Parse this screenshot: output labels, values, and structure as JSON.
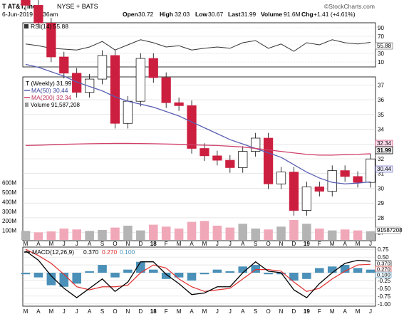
{
  "header": {
    "symbol_line": "T AT&T, Inc.",
    "exchange": "NYSE + BATS",
    "datetime": "6-Jun-2019 10:36am",
    "open_label": "Open",
    "open": "30.72",
    "high_label": "High",
    "high": "32.03",
    "low_label": "Low",
    "low": "30.67",
    "last_label": "Last",
    "last": "31.99",
    "volume_label": "Volume",
    "volume": "91.6M",
    "chg_label": "Chg",
    "chg": "+1.41 (+4.61%)",
    "brand": "©StockCharts.com"
  },
  "rsi_panel": {
    "label": "RSI(14) 55.88",
    "ticks": [
      "90",
      "70",
      "50",
      "30",
      "10"
    ],
    "value_box": "55.88"
  },
  "price_panel": {
    "legend_title": "T (Weekly) 31.99",
    "ma50_label": "MA(50) 30.44",
    "ma200_label": "MA(200) 32.34",
    "volume_label": "Volume 91,587,208",
    "price_ticks": [
      "37",
      "36",
      "35",
      "34",
      "33",
      "32",
      "31",
      "30",
      "29",
      "28",
      "27"
    ],
    "box_ma200": "32.34",
    "box_last": "31.99",
    "box_ma50": "30.44",
    "volume_ticks": [
      "600M",
      "500M",
      "400M",
      "300M",
      "200M",
      "100M"
    ],
    "volume_box": "91587208"
  },
  "macd_panel": {
    "label_prefix": "MACD(12,26,9)",
    "macd_value": "0.370",
    "signal_value": "0.270",
    "hist_value": "0.100",
    "ticks": [
      "0.75",
      "0.50",
      "0.25",
      "0.00",
      "-0.25",
      "-0.50",
      "-0.75",
      "-1.00"
    ],
    "box_macd": "0.370",
    "box_signal": "0.270",
    "box_hist": "0.100"
  },
  "x_axis_labels": [
    "M",
    "A",
    "M",
    "J",
    "J",
    "A",
    "S",
    "O",
    "N",
    "D",
    "18",
    "F",
    "M",
    "A",
    "M",
    "J",
    "J",
    "A",
    "S",
    "O",
    "N",
    "D",
    "19",
    "F",
    "M",
    "A",
    "M",
    "J"
  ],
  "colors": {
    "up_candle": "#ffffff",
    "down_candle": "#cc1f3f",
    "ma50": "#5a5fb3",
    "ma200": "#d0406a",
    "volume_up": "#b4b4b4",
    "volume_down": "#f0a8b8",
    "macd_line": "#000000",
    "signal_line": "#e03030",
    "histogram": "#4a90b8",
    "rsi_line": "#333333"
  },
  "chart_data": {
    "type": "candlestick",
    "title": "T AT&T, Inc.",
    "interval": "weekly",
    "x": [
      "Mar17",
      "Apr17",
      "May17",
      "Jun17",
      "Jul17",
      "Aug17",
      "Sep17",
      "Oct17",
      "Nov17",
      "Dec17",
      "Jan18",
      "Feb18",
      "Mar18",
      "Apr18",
      "May18",
      "Jun18",
      "Jul18",
      "Aug18",
      "Sep18",
      "Oct18",
      "Nov18",
      "Dec18",
      "Jan19",
      "Feb19",
      "Mar19",
      "Apr19",
      "May19",
      "Jun19"
    ],
    "close": [
      42.4,
      41.2,
      38.9,
      37.8,
      36.5,
      37.4,
      39.0,
      34.4,
      35.9,
      38.8,
      37.5,
      35.8,
      35.6,
      32.7,
      32.2,
      31.9,
      31.4,
      32.5,
      33.4,
      30.3,
      31.1,
      28.5,
      30.1,
      29.8,
      31.2,
      30.8,
      30.4,
      31.99
    ],
    "ma50": [
      38.4,
      38.2,
      37.9,
      37.6,
      37.2,
      36.9,
      36.6,
      36.2,
      35.9,
      35.7,
      35.5,
      35.2,
      34.9,
      34.5,
      34.1,
      33.7,
      33.3,
      33.0,
      32.7,
      32.4,
      32.1,
      31.6,
      31.1,
      30.7,
      30.4,
      30.3,
      30.35,
      30.44
    ],
    "ma200": [
      32.9,
      32.92,
      32.95,
      32.98,
      33.0,
      33.02,
      33.03,
      33.04,
      33.04,
      33.03,
      33.02,
      33.0,
      32.98,
      32.95,
      32.92,
      32.9,
      32.85,
      32.8,
      32.7,
      32.6,
      32.5,
      32.4,
      32.3,
      32.25,
      32.25,
      32.28,
      32.3,
      32.34
    ],
    "price_ylim": [
      26.5,
      37.5
    ],
    "rsi": [
      52,
      48,
      42,
      40,
      38,
      45,
      58,
      38,
      50,
      62,
      55,
      45,
      48,
      38,
      42,
      45,
      42,
      55,
      60,
      42,
      52,
      35,
      55,
      50,
      62,
      55,
      52,
      55.88
    ],
    "rsi_ylim": [
      0,
      100
    ],
    "macd": [
      0.7,
      0.4,
      -0.1,
      -0.5,
      -0.8,
      -0.5,
      -0.2,
      -0.6,
      -0.3,
      0.35,
      0.35,
      -0.05,
      -0.35,
      -0.7,
      -0.65,
      -0.45,
      -0.45,
      0.0,
      0.35,
      0.05,
      0.0,
      -0.55,
      -0.8,
      -0.35,
      0.0,
      0.3,
      0.4,
      0.37
    ],
    "signal": [
      0.75,
      0.55,
      0.3,
      -0.05,
      -0.45,
      -0.55,
      -0.45,
      -0.45,
      -0.4,
      0.0,
      0.25,
      0.15,
      -0.2,
      -0.45,
      -0.6,
      -0.55,
      -0.5,
      -0.2,
      0.1,
      0.1,
      0.05,
      -0.3,
      -0.6,
      -0.5,
      -0.2,
      0.05,
      0.25,
      0.27
    ],
    "macd_ylim": [
      -1.05,
      0.8
    ],
    "volume_millions": [
      95,
      80,
      90,
      120,
      110,
      95,
      105,
      130,
      150,
      100,
      160,
      140,
      120,
      190,
      200,
      150,
      130,
      170,
      120,
      110,
      140,
      210,
      170,
      120,
      100,
      110,
      100,
      91.6
    ],
    "volume_ylim": [
      0,
      650
    ],
    "price_axis": [
      "37",
      "36",
      "35",
      "34",
      "33",
      "32",
      "31",
      "30",
      "29",
      "28",
      "27"
    ]
  }
}
